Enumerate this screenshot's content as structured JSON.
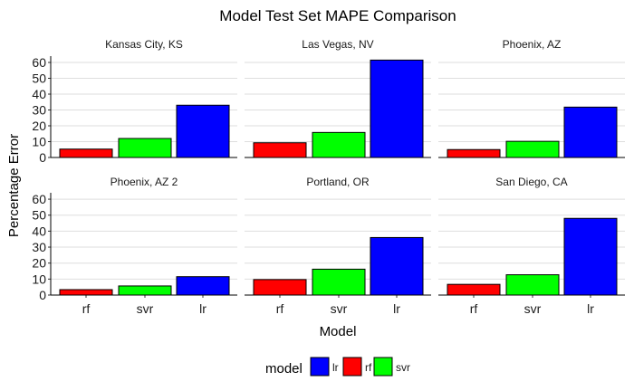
{
  "chart_data": {
    "type": "bar",
    "title": "Model Test Set MAPE Comparison",
    "xlabel": "Model",
    "ylabel": "Percentage Error",
    "categories": [
      "rf",
      "svr",
      "lr"
    ],
    "ylim": [
      0,
      64
    ],
    "yticks": [
      0,
      10,
      20,
      30,
      40,
      50,
      60
    ],
    "grid": true,
    "legend": {
      "title": "model",
      "position": "bottom",
      "entries": [
        {
          "label": "lr",
          "color": "#0000ff"
        },
        {
          "label": "rf",
          "color": "#ff0000"
        },
        {
          "label": "svr",
          "color": "#00ff00"
        }
      ]
    },
    "colors": {
      "rf": "#ff0000",
      "svr": "#00ff00",
      "lr": "#0000ff"
    },
    "panels": [
      {
        "name": "Kansas City, KS",
        "values": [
          5.3,
          12.0,
          33.0
        ]
      },
      {
        "name": "Las Vegas, NV",
        "values": [
          9.3,
          15.8,
          61.5
        ]
      },
      {
        "name": "Phoenix, AZ",
        "values": [
          5.0,
          10.2,
          31.8
        ]
      },
      {
        "name": "Phoenix, AZ 2",
        "values": [
          3.4,
          5.7,
          11.5
        ]
      },
      {
        "name": "Portland, OR",
        "values": [
          9.7,
          16.2,
          36.0
        ]
      },
      {
        "name": "San Diego, CA",
        "values": [
          6.7,
          12.7,
          48.0
        ]
      }
    ]
  }
}
